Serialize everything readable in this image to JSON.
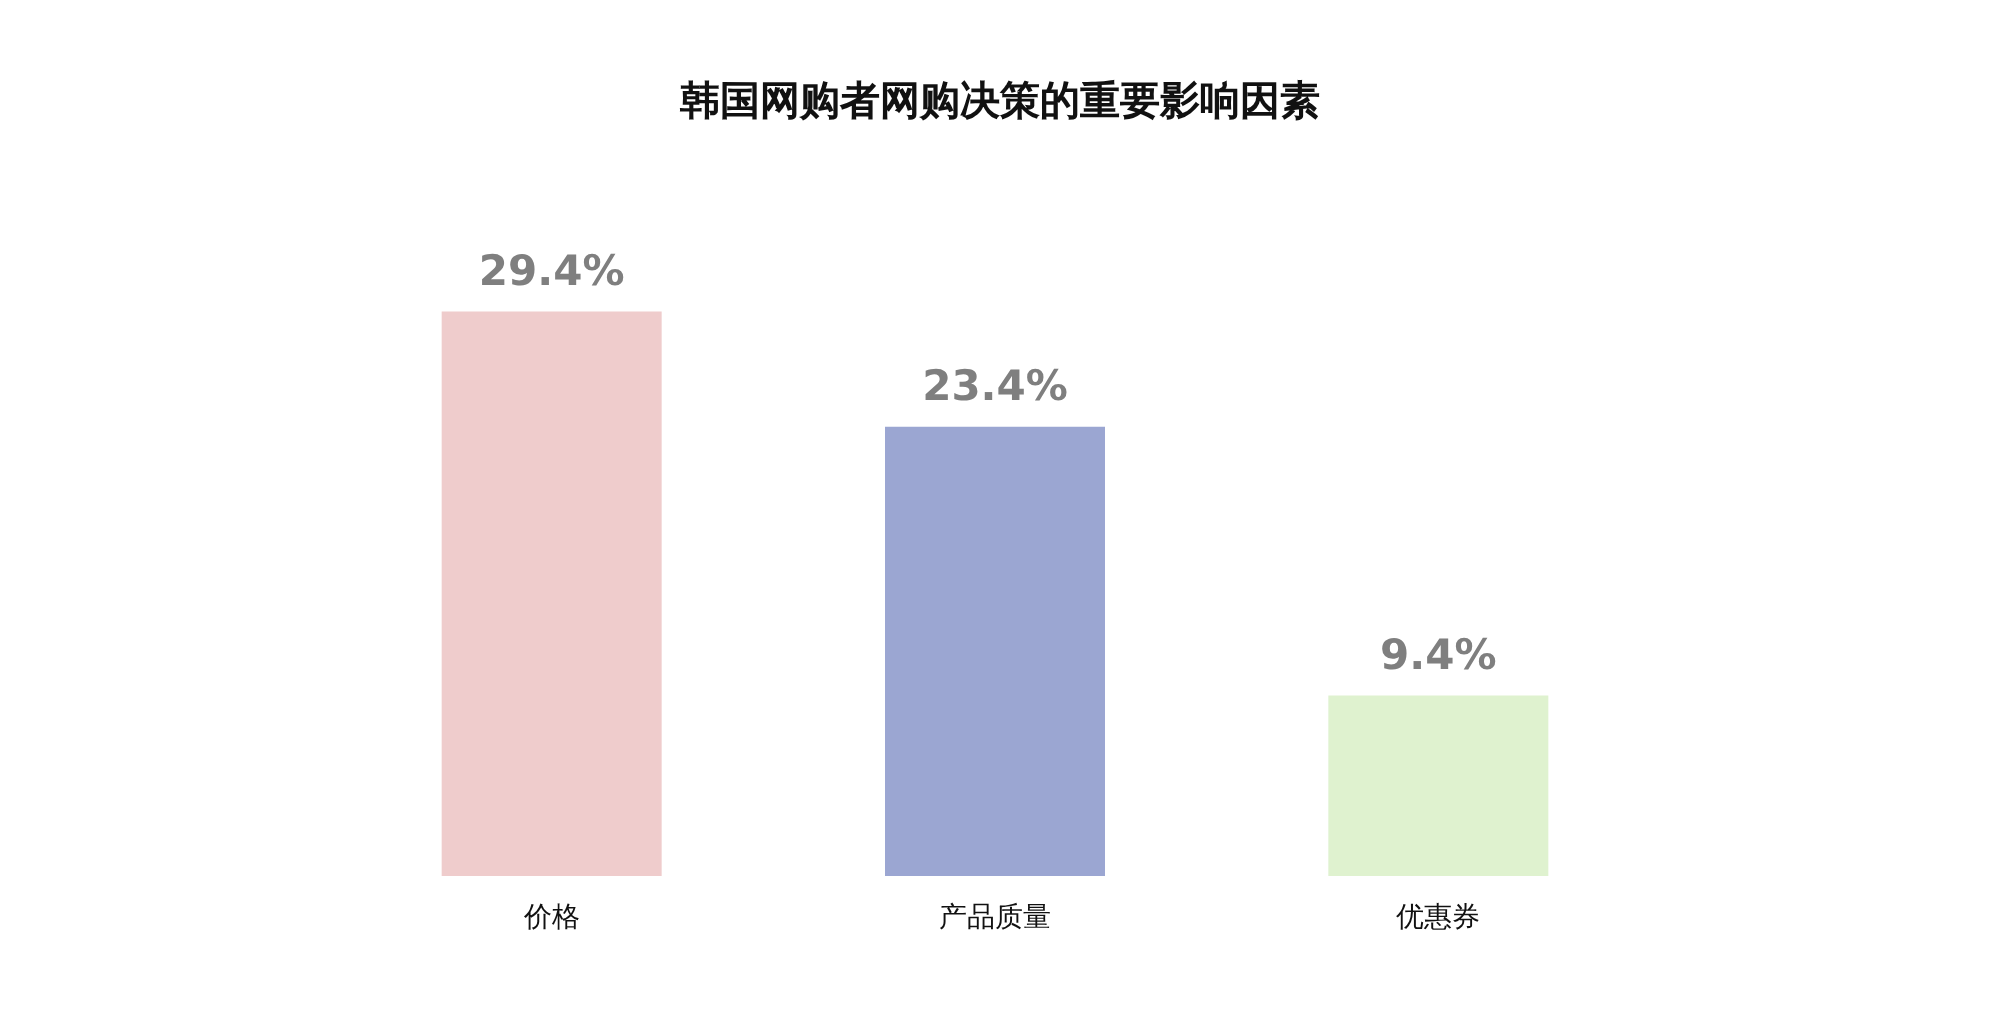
{
  "chart_data": {
    "type": "bar",
    "title": "韩国网购者网购决策的重要影响因素",
    "categories": [
      "价格",
      "产品质量",
      "优惠券"
    ],
    "values": [
      29.4,
      23.4,
      9.4
    ],
    "colors": [
      "#efcccc",
      "#9ba6d2",
      "#dff2cf"
    ],
    "value_labels": [
      "29.4%",
      "23.4%",
      "9.4%"
    ]
  }
}
